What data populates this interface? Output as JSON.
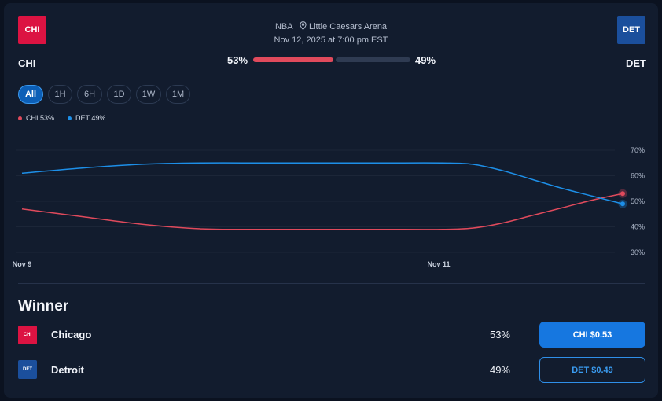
{
  "header": {
    "league": "NBA",
    "venue": "Little Caesars Arena",
    "datetime": "Nov 12, 2025 at 7:00 pm EST"
  },
  "teams": {
    "home": {
      "abbr": "CHI",
      "color": "#dc1342",
      "pct_label": "53%",
      "pct": 53
    },
    "away": {
      "abbr": "DET",
      "color": "#1b4f9c",
      "pct_label": "49%",
      "pct": 49
    }
  },
  "colors": {
    "chi_line": "#e04a5c",
    "det_line": "#1d8fe8",
    "accent": "#1677e0"
  },
  "filters": [
    "All",
    "1H",
    "6H",
    "1D",
    "1W",
    "1M"
  ],
  "active_filter": "All",
  "legend": [
    {
      "label": "CHI 53%",
      "color": "#e04a5c"
    },
    {
      "label": "DET 49%",
      "color": "#1d8fe8"
    }
  ],
  "chart_data": {
    "type": "line",
    "x_ticks": [
      "Nov 9",
      "Nov 11"
    ],
    "y_ticks": [
      "70%",
      "60%",
      "50%",
      "40%",
      "30%"
    ],
    "ylim": [
      30,
      70
    ],
    "grid": true,
    "x": [
      0,
      0.1,
      0.2,
      0.3,
      0.4,
      0.5,
      0.6,
      0.7,
      0.75,
      0.8,
      0.85,
      0.9,
      0.95,
      1.0
    ],
    "series": [
      {
        "name": "CHI",
        "color": "#e04a5c",
        "values": [
          47,
          44,
          41,
          39.2,
          39,
          39,
          39,
          39,
          39.5,
          41.5,
          44.5,
          47.5,
          50.5,
          53
        ]
      },
      {
        "name": "DET",
        "color": "#1d8fe8",
        "values": [
          61,
          63,
          64.5,
          65,
          65,
          65,
          65,
          65,
          64.5,
          62,
          58.5,
          55,
          52,
          49
        ]
      }
    ]
  },
  "winner": {
    "title": "Winner",
    "rows": [
      {
        "abbr": "CHI",
        "name": "Chicago",
        "pct": "53%",
        "button": "CHI $0.53"
      },
      {
        "abbr": "DET",
        "name": "Detroit",
        "pct": "49%",
        "button": "DET $0.49"
      }
    ]
  }
}
